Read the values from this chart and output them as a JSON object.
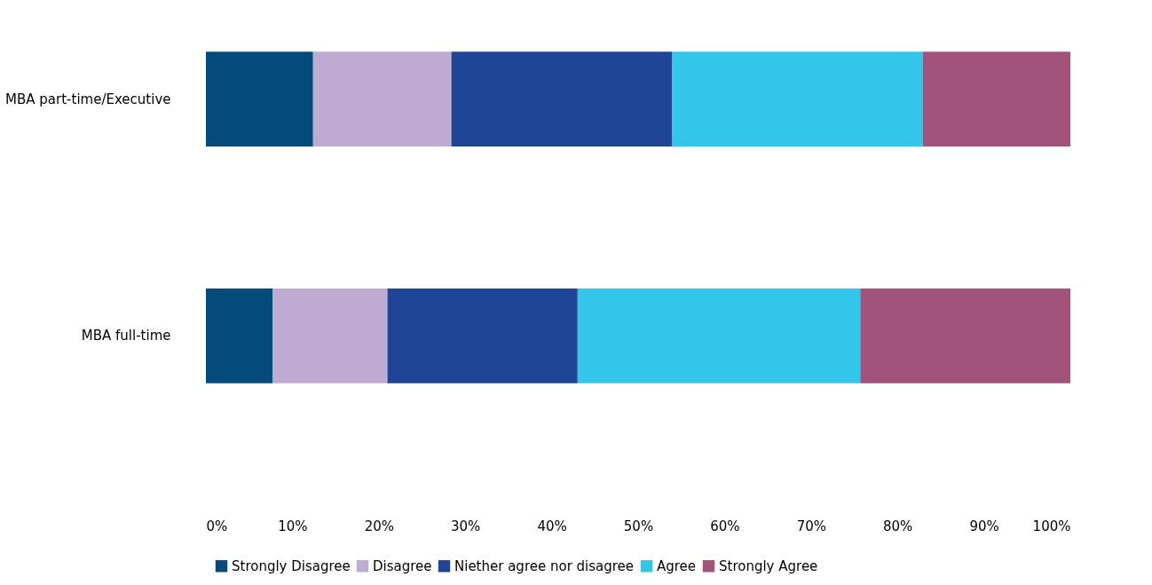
{
  "chart_data": {
    "type": "bar",
    "orientation": "horizontal",
    "stacked": true,
    "categories": [
      "MBA part-time/Executive",
      "MBA full-time"
    ],
    "series": [
      {
        "name": "Strongly Disagree",
        "color": "#034b7a",
        "values": [
          12.4,
          7.7
        ]
      },
      {
        "name": "Disagree",
        "color": "#bfaad2",
        "values": [
          16.0,
          13.3
        ]
      },
      {
        "name": "Niether agree nor disagree",
        "color": "#1f4696",
        "values": [
          25.5,
          22.0
        ]
      },
      {
        "name": "Agree",
        "color": "#33c5ea",
        "values": [
          29.0,
          32.7
        ]
      },
      {
        "name": "Strongly Agree",
        "color": "#a2537b",
        "values": [
          17.1,
          24.3
        ]
      }
    ],
    "xlim": [
      0,
      100
    ],
    "xticks": [
      {
        "value": 0,
        "label": "0%"
      },
      {
        "value": 10,
        "label": "10%"
      },
      {
        "value": 20,
        "label": "20%"
      },
      {
        "value": 30,
        "label": "30%"
      },
      {
        "value": 40,
        "label": "40%"
      },
      {
        "value": 50,
        "label": "50%"
      },
      {
        "value": 60,
        "label": "60%"
      },
      {
        "value": 70,
        "label": "70%"
      },
      {
        "value": 80,
        "label": "80%"
      },
      {
        "value": 90,
        "label": "90%"
      },
      {
        "value": 100,
        "label": "100%"
      }
    ],
    "grid": false,
    "legend": "bottom"
  }
}
